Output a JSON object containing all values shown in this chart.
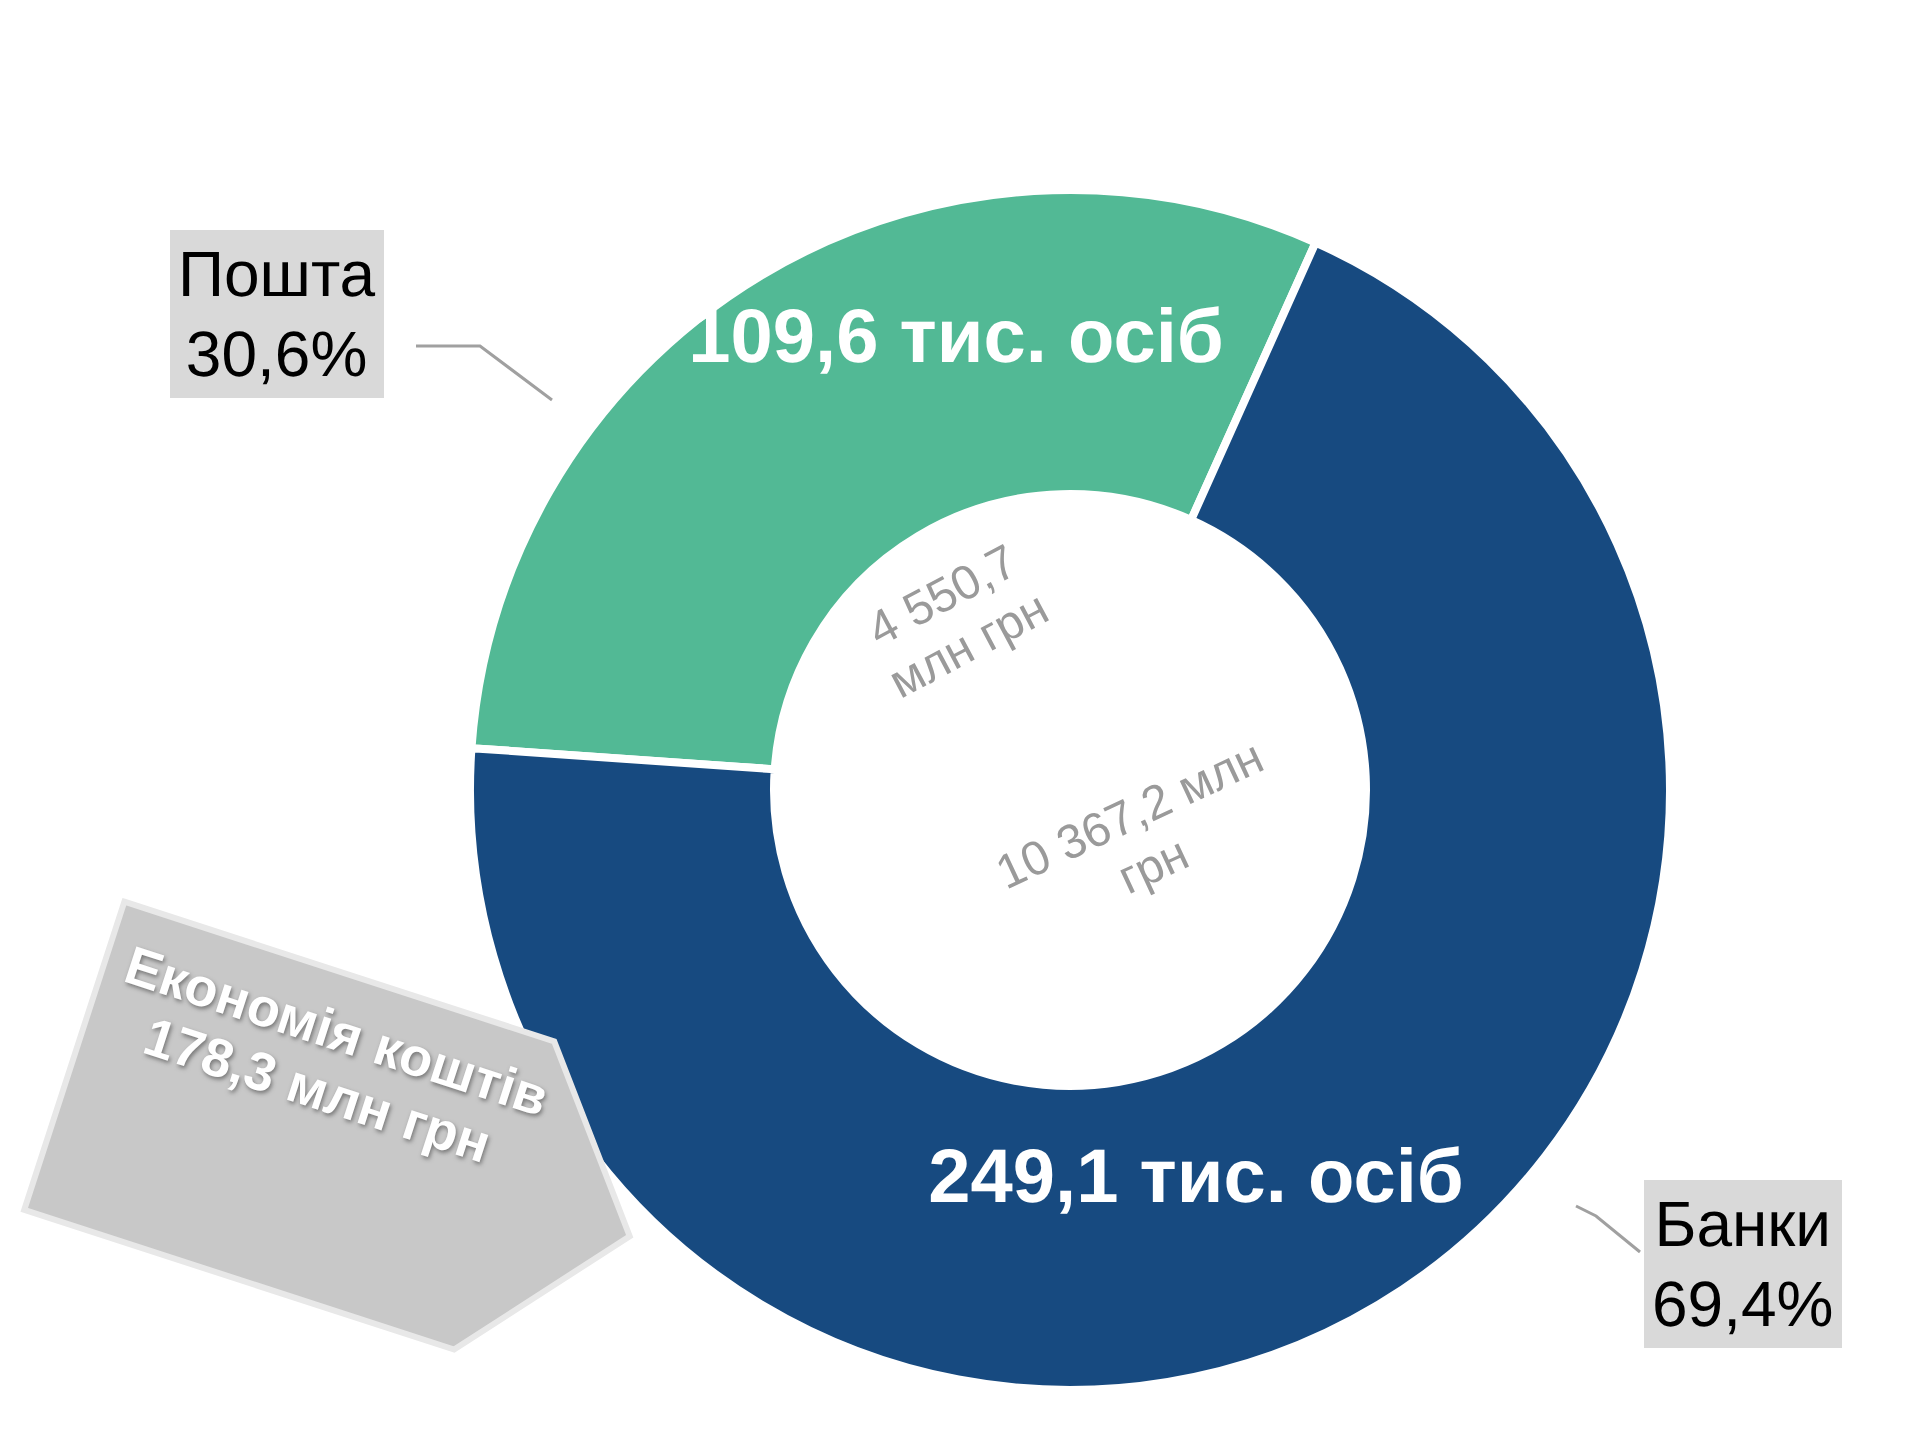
{
  "chart_data": {
    "type": "donut",
    "categories": [
      "Пошта",
      "Банки"
    ],
    "values": [
      30.6,
      69.4
    ],
    "colors": [
      "#52b995",
      "#174a80"
    ],
    "value_labels": [
      "30,6%",
      "69,4%"
    ],
    "legend": false,
    "annotations": [
      "109,6 тис. осіб",
      "249,1 тис. осіб",
      "4 550,7 млн грн",
      "10 367,2 млн грн",
      "Економія коштів 178,3 млн грн"
    ]
  }
}
